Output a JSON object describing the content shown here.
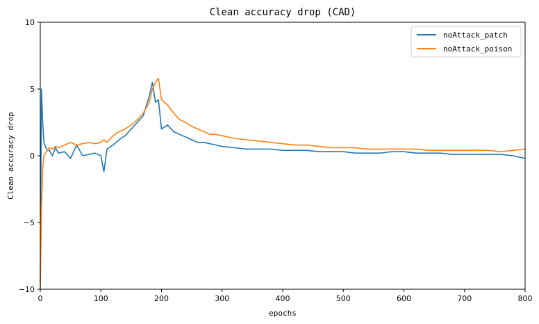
{
  "chart_data": {
    "type": "line",
    "title": "Clean accuracy drop (CAD)",
    "xlabel": "epochs",
    "ylabel": "Clean accuracy drop",
    "xlim": [
      0,
      800
    ],
    "ylim": [
      -10,
      10
    ],
    "x_ticks": [
      0,
      100,
      200,
      300,
      400,
      500,
      600,
      700,
      800
    ],
    "y_ticks": [
      -10,
      -5,
      0,
      5,
      10
    ],
    "y_tick_labels": [
      "−10",
      "−5",
      "0",
      "5",
      "10"
    ],
    "grid": false,
    "legend_position": "top-right",
    "series": [
      {
        "name": "noAttack_patch",
        "color": "#1f77b4",
        "x": [
          0,
          2,
          4,
          6,
          10,
          15,
          20,
          25,
          30,
          40,
          50,
          60,
          70,
          80,
          90,
          100,
          105,
          110,
          120,
          130,
          140,
          150,
          160,
          170,
          180,
          185,
          190,
          195,
          200,
          210,
          220,
          230,
          240,
          250,
          260,
          270,
          280,
          290,
          300,
          320,
          340,
          360,
          380,
          400,
          420,
          440,
          460,
          480,
          500,
          520,
          540,
          560,
          580,
          600,
          620,
          640,
          660,
          680,
          700,
          720,
          740,
          760,
          780,
          800
        ],
        "y": [
          -9.5,
          5.0,
          2.5,
          1.0,
          0.5,
          0.4,
          0.0,
          0.6,
          0.2,
          0.3,
          -0.2,
          0.8,
          0.0,
          0.1,
          0.2,
          0.0,
          -1.2,
          0.5,
          0.8,
          1.2,
          1.5,
          2.0,
          2.5,
          3.0,
          4.5,
          5.5,
          4.0,
          4.2,
          2.0,
          2.3,
          1.8,
          1.6,
          1.4,
          1.2,
          1.0,
          1.0,
          0.9,
          0.8,
          0.7,
          0.6,
          0.5,
          0.5,
          0.5,
          0.4,
          0.4,
          0.4,
          0.3,
          0.3,
          0.3,
          0.2,
          0.2,
          0.2,
          0.3,
          0.3,
          0.2,
          0.2,
          0.2,
          0.1,
          0.1,
          0.1,
          0.1,
          0.1,
          0.0,
          -0.2
        ]
      },
      {
        "name": "noAttack_poison",
        "color": "#ff7f0e",
        "x": [
          0,
          2,
          4,
          6,
          10,
          15,
          20,
          25,
          30,
          40,
          50,
          60,
          70,
          80,
          90,
          100,
          105,
          110,
          120,
          130,
          140,
          150,
          160,
          170,
          180,
          185,
          190,
          195,
          200,
          210,
          220,
          230,
          240,
          250,
          260,
          270,
          280,
          290,
          300,
          320,
          340,
          360,
          380,
          400,
          420,
          440,
          460,
          480,
          500,
          520,
          540,
          560,
          580,
          600,
          620,
          640,
          660,
          680,
          700,
          720,
          740,
          760,
          780,
          800
        ],
        "y": [
          -10.0,
          -4.0,
          -1.0,
          0.0,
          0.3,
          0.6,
          0.5,
          0.7,
          0.6,
          0.8,
          1.0,
          0.8,
          0.9,
          1.0,
          0.9,
          1.0,
          1.2,
          1.0,
          1.5,
          1.8,
          2.0,
          2.3,
          2.7,
          3.2,
          4.0,
          5.0,
          5.5,
          5.8,
          4.2,
          3.8,
          3.2,
          2.7,
          2.5,
          2.2,
          2.0,
          1.8,
          1.6,
          1.6,
          1.5,
          1.3,
          1.2,
          1.1,
          1.0,
          0.9,
          0.8,
          0.8,
          0.7,
          0.6,
          0.6,
          0.6,
          0.5,
          0.5,
          0.5,
          0.5,
          0.5,
          0.4,
          0.4,
          0.4,
          0.4,
          0.4,
          0.4,
          0.3,
          0.4,
          0.5
        ]
      }
    ]
  }
}
